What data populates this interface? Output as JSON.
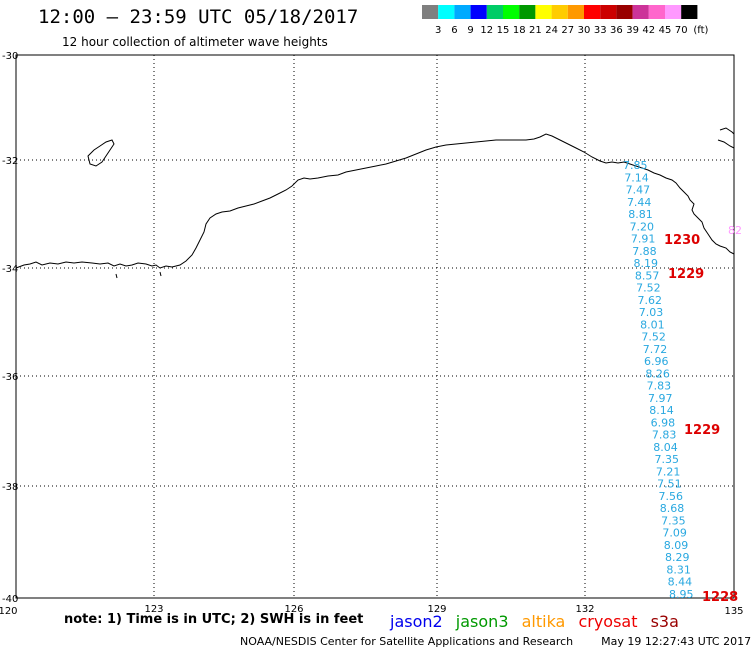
{
  "header": {
    "title": "12:00 – 23:59 UTC 05/18/2017",
    "subtitle": "12 hour collection of altimeter wave heights"
  },
  "colorbar": {
    "unit": "(ft)",
    "ticks": [
      "3",
      "6",
      "9",
      "12",
      "15",
      "18",
      "21",
      "24",
      "27",
      "30",
      "33",
      "36",
      "39",
      "42",
      "45",
      "70"
    ],
    "colors": [
      "#7f7f7f",
      "#00ffff",
      "#00aaff",
      "#0000ff",
      "#00cc66",
      "#00ff00",
      "#009900",
      "#ffff00",
      "#ffcc00",
      "#ff9900",
      "#ff0000",
      "#cc0000",
      "#990000",
      "#cc3399",
      "#ff66cc",
      "#ff99ff",
      "#000000"
    ]
  },
  "axes": {
    "lon_ticks": [
      "120",
      "123",
      "126",
      "129",
      "132",
      "135"
    ],
    "lat_ticks": [
      "-30",
      "-32",
      "-34",
      "-36",
      "-38",
      "-40"
    ]
  },
  "track": {
    "color": "#29a8e0",
    "values": [
      "7.85",
      "7.14",
      "7.47",
      "7.44",
      "8.81",
      "7.20",
      "7.91",
      "7.88",
      "8.19",
      "8.57",
      "7.52",
      "7.62",
      "7.03",
      "8.01",
      "7.52",
      "7.72",
      "6.96",
      "8.26",
      "7.83",
      "7.97",
      "8.14",
      "6.98",
      "7.83",
      "8.04",
      "7.35",
      "7.21",
      "7.51",
      "7.56",
      "8.68",
      "7.35",
      "7.09",
      "8.09",
      "8.29",
      "8.31",
      "8.44",
      "8.95"
    ]
  },
  "time_labels": {
    "color": "#dd0000",
    "items": [
      "1230",
      "1229",
      "1229",
      "1228"
    ]
  },
  "edge_label": {
    "text": "82",
    "color": "#ff99ff"
  },
  "note": "note: 1) Time is in UTC; 2) SWH is in feet",
  "satellites": [
    {
      "name": "jason2",
      "color": "#0000ee"
    },
    {
      "name": "jason3",
      "color": "#009900"
    },
    {
      "name": "altika",
      "color": "#ff9900"
    },
    {
      "name": "cryosat",
      "color": "#ee0000"
    },
    {
      "name": "s3a",
      "color": "#990000"
    }
  ],
  "footer": {
    "credit": "NOAA/NESDIS Center for Satellite Applications and Research",
    "timestamp": "May 19 12:27:43 UTC 2017"
  }
}
